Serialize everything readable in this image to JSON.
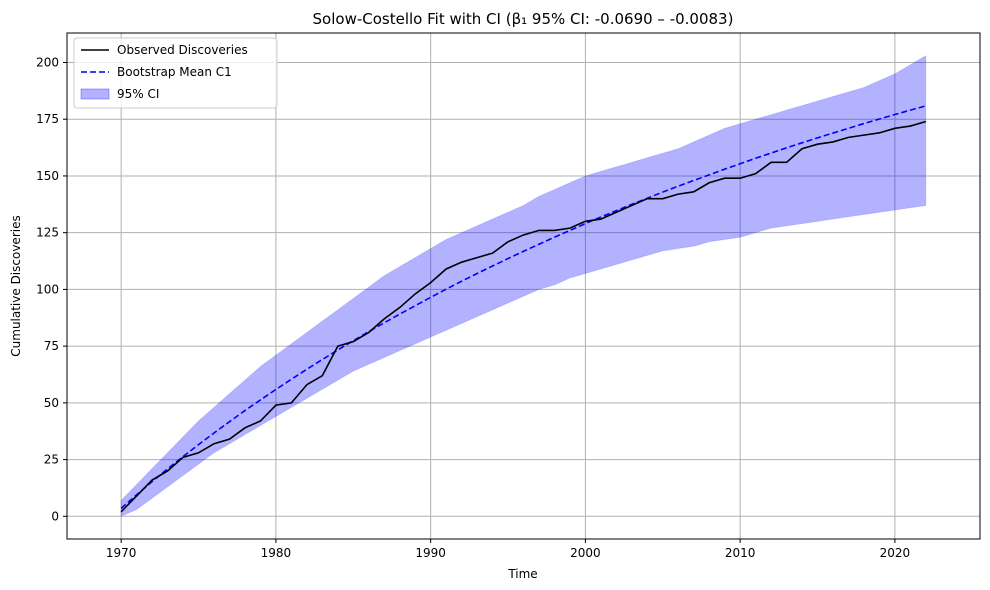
{
  "chart_data": {
    "type": "line",
    "title": "Solow-Costello Fit with CI (β₁ 95% CI: -0.0690 – -0.0083)",
    "xlabel": "Time",
    "ylabel": "Cumulative Discoveries",
    "xlim": [
      1966.5,
      2025.5
    ],
    "ylim": [
      -10,
      213
    ],
    "xticks": [
      1970,
      1980,
      1990,
      2000,
      2010,
      2020
    ],
    "yticks": [
      0,
      25,
      50,
      75,
      100,
      125,
      150,
      175,
      200
    ],
    "grid": true,
    "legend_position": "top-left",
    "x": [
      1970,
      1971,
      1972,
      1973,
      1974,
      1975,
      1976,
      1977,
      1978,
      1979,
      1980,
      1981,
      1982,
      1983,
      1984,
      1985,
      1986,
      1987,
      1988,
      1989,
      1990,
      1991,
      1992,
      1993,
      1994,
      1995,
      1996,
      1997,
      1998,
      1999,
      2000,
      2001,
      2002,
      2003,
      2004,
      2005,
      2006,
      2007,
      2008,
      2009,
      2010,
      2011,
      2012,
      2013,
      2014,
      2015,
      2016,
      2017,
      2018,
      2019,
      2020,
      2021,
      2022
    ],
    "series": [
      {
        "name": "Observed Discoveries",
        "color": "#000000",
        "style": "solid",
        "values": [
          2,
          9,
          16,
          20,
          26,
          28,
          32,
          34,
          39,
          42,
          49,
          50,
          58,
          62,
          75,
          77,
          81,
          87,
          92,
          98,
          103,
          109,
          112,
          114,
          116,
          121,
          124,
          126,
          126,
          127,
          130,
          131,
          134,
          137,
          140,
          140,
          142,
          143,
          147,
          149,
          149,
          151,
          156,
          156,
          162,
          164,
          165,
          167,
          168,
          169,
          171,
          172,
          174
        ]
      },
      {
        "name": "Bootstrap Mean C1",
        "color": "#0000ff",
        "style": "dashed",
        "values": [
          3.5,
          9.5,
          15.3,
          20.9,
          26.3,
          31.6,
          36.7,
          41.7,
          46.6,
          51.3,
          55.9,
          60.4,
          64.8,
          69.1,
          73.3,
          77.4,
          81.4,
          85.3,
          89.1,
          92.8,
          96.5,
          100.1,
          103.6,
          107.0,
          110.3,
          113.6,
          116.8,
          119.9,
          123.0,
          126.0,
          129.0,
          131.9,
          134.7,
          137.5,
          140.2,
          142.9,
          145.5,
          148.0,
          150.5,
          153.0,
          155.4,
          157.8,
          160.1,
          162.4,
          164.6,
          166.8,
          168.9,
          171.0,
          173.1,
          175.1,
          177.1,
          179.0,
          180.9
        ]
      },
      {
        "name": "95% CI",
        "color": "#0000ff",
        "style": "fill",
        "opacity": 0.3,
        "lower": [
          0,
          3,
          8,
          13,
          18,
          23,
          28,
          32,
          36,
          40,
          44,
          48,
          52,
          56,
          60,
          64,
          67,
          70,
          73,
          76,
          79,
          82,
          85,
          88,
          91,
          94,
          97,
          100,
          102,
          105,
          107,
          109,
          111,
          113,
          115,
          117,
          118,
          119,
          121,
          122,
          123,
          125,
          127,
          128,
          129,
          130,
          131,
          132,
          133,
          134,
          135,
          136,
          137
        ],
        "upper": [
          7,
          14,
          21,
          28,
          35,
          42,
          48,
          54,
          60,
          66,
          71,
          76,
          81,
          86,
          91,
          96,
          101,
          106,
          110,
          114,
          118,
          122,
          125,
          128,
          131,
          134,
          137,
          141,
          144,
          147,
          150,
          152,
          154,
          156,
          158,
          160,
          162,
          165,
          168,
          171,
          173,
          175,
          177,
          179,
          181,
          183,
          185,
          187,
          189,
          192,
          195,
          199,
          203
        ]
      }
    ]
  }
}
